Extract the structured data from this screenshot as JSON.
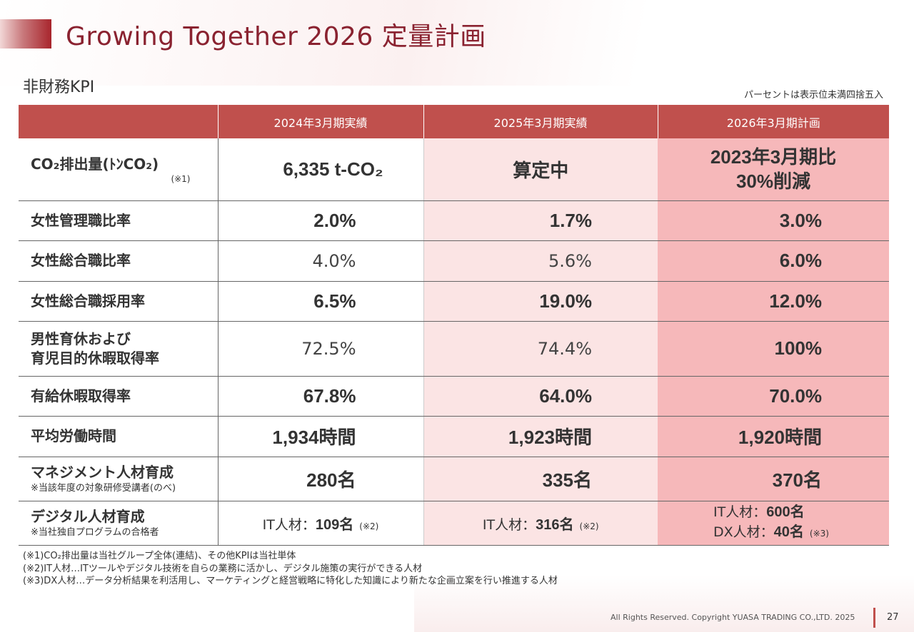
{
  "title": "Growing Together 2026 定量計画",
  "subtitle": "非財務KPI",
  "note": "パーセントは表示位未満四捨五入",
  "headers": [
    "",
    "2024年3月期実績",
    "2025年3月期実績",
    "2026年3月期計画"
  ],
  "rows": {
    "co2": {
      "label": "CO₂排出量(ﾄﾝCO₂)",
      "note": "(※1)",
      "v2024": "6,335 t-CO₂",
      "v2025": "算定中",
      "v2026_line1": "2023年3月期比",
      "v2026_line2": "30%削減"
    },
    "women_mgmt": {
      "label": "女性管理職比率",
      "v2024": "2.0%",
      "v2025": "1.7%",
      "v2026": "3.0%"
    },
    "women_career": {
      "label": "女性総合職比率",
      "v2024": "4.0%",
      "v2025": "5.6%",
      "v2026": "6.0%"
    },
    "women_hire": {
      "label": "女性総合職採用率",
      "v2024": "6.5%",
      "v2025": "19.0%",
      "v2026": "12.0%"
    },
    "paternity": {
      "label_line1": "男性育休および",
      "label_line2": "育児目的休暇取得率",
      "v2024": "72.5%",
      "v2025": "74.4%",
      "v2026": "100%"
    },
    "paid_leave": {
      "label": "有給休暇取得率",
      "v2024": "67.8%",
      "v2025": "64.0%",
      "v2026": "70.0%"
    },
    "work_hours": {
      "label": "平均労働時間",
      "v2024": "1,934時間",
      "v2025": "1,923時間",
      "v2026": "1,920時間"
    },
    "mgmt_talent": {
      "label": "マネジメント人材育成",
      "sublabel": "※当該年度の対象研修受講者(のべ)",
      "v2024": "280名",
      "v2025": "335名",
      "v2026": "370名"
    },
    "digital": {
      "label": "デジタル人材育成",
      "sublabel": "※当社独自プログラムの合格者",
      "v2024_prefix": "IT人材：",
      "v2024": "109名",
      "v2024_note": "(※2)",
      "v2025_prefix": "IT人材：",
      "v2025": "316名",
      "v2025_note": "(※2)",
      "v2026_it_prefix": "IT人材：",
      "v2026_it": "600名",
      "v2026_dx_prefix": "DX人材：",
      "v2026_dx": "40名",
      "v2026_dx_note": "(※3)"
    }
  },
  "footnotes": [
    "(※1)CO₂排出量は当社グループ全体(連結)、その他KPIは当社単体",
    "(※2)IT人材…ITツールやデジタル技術を自らの業務に活かし、デジタル施策の実行ができる人材",
    "(※3)DX人材…データ分析結果を利活用し、マーケティングと経営戦略に特化した知識により新たな企画立案を行い推進する人材"
  ],
  "copyright": "All Rights Reserved. Copyright  YUASA TRADING CO.,LTD. 2025",
  "page_number": "27",
  "colors": {
    "accent": "#c0504d",
    "title": "#8a2230",
    "col2025": "#fbe4e4",
    "col2026": "#f6b8ba"
  }
}
